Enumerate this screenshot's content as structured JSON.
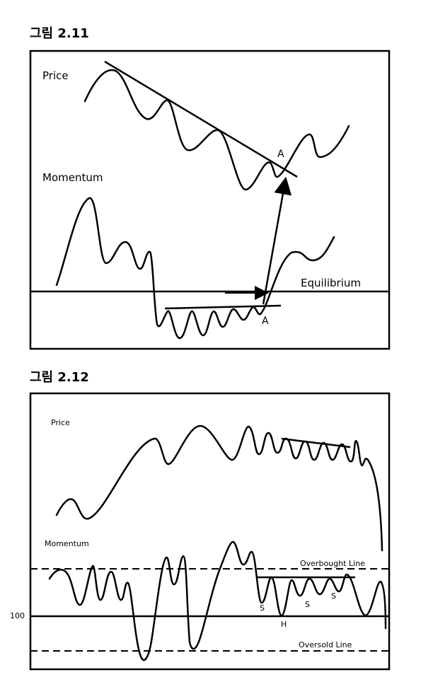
{
  "figure1": {
    "title": "그림 2.11",
    "labels": {
      "price": "Price",
      "momentum": "Momentum",
      "equilibrium": "Equilibrium",
      "point_a_price": "A",
      "point_a_momentum": "A"
    }
  },
  "figure2": {
    "title": "그림 2.12",
    "labels": {
      "price": "Price",
      "momentum": "Momentum",
      "overbought": "Overbought Line",
      "oversold": "Oversold Line",
      "level_100": "100",
      "s1": "S",
      "h": "H",
      "s2": "S",
      "s3": "S"
    }
  }
}
